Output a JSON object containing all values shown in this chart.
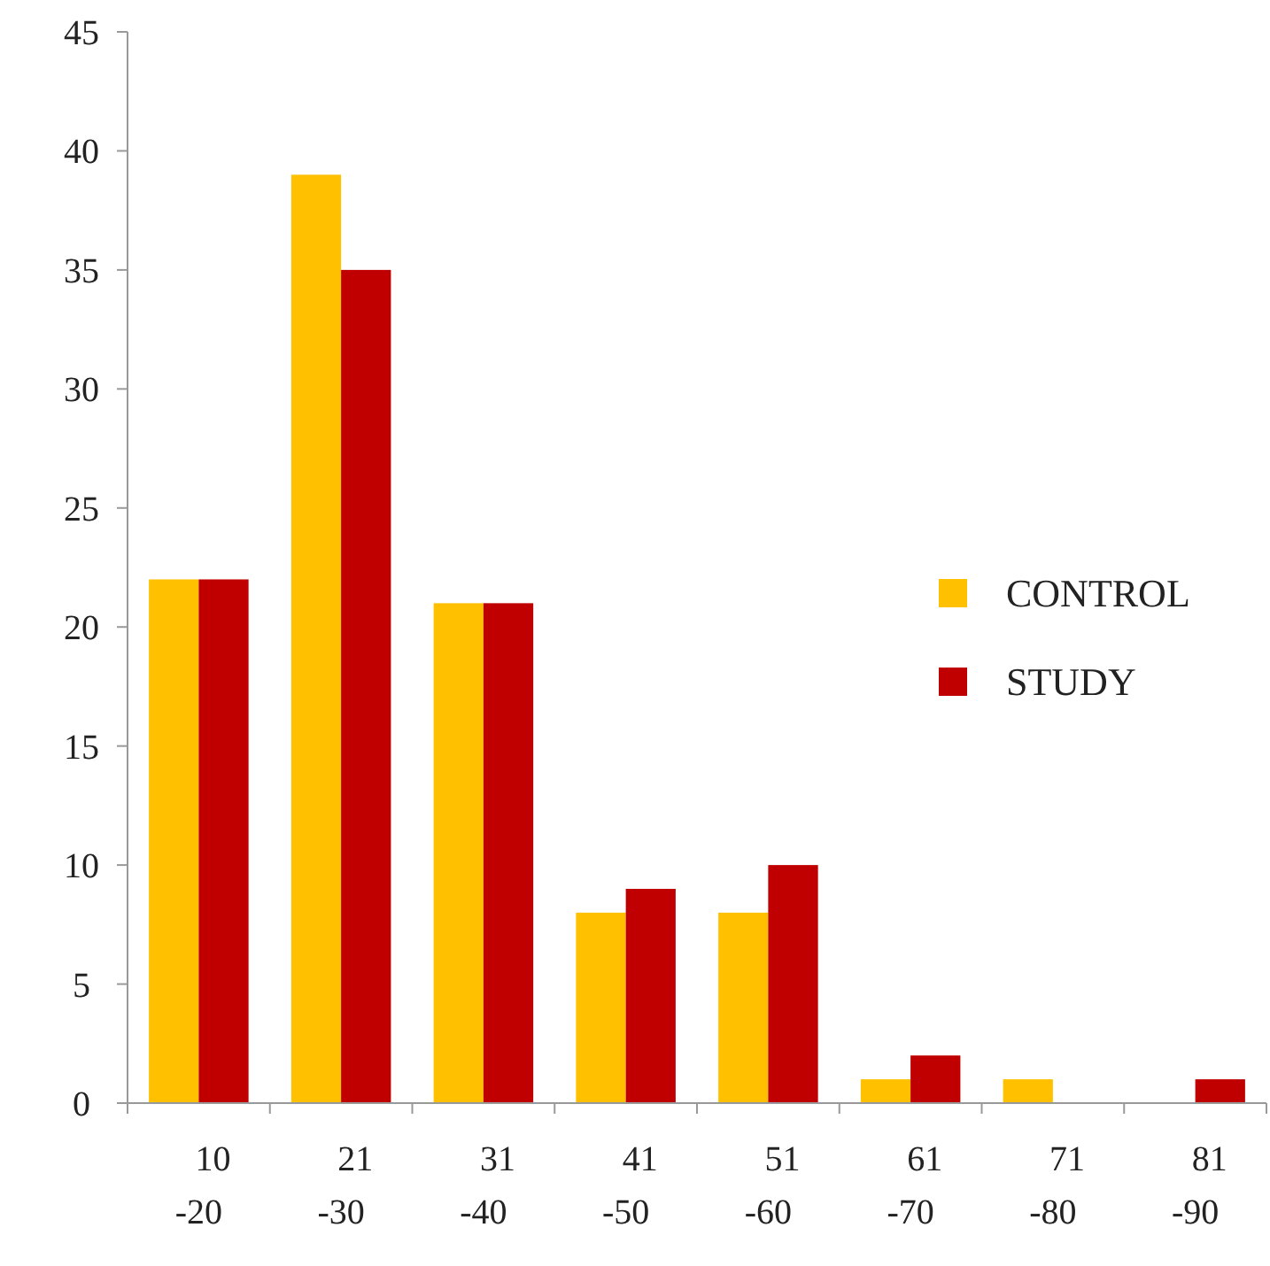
{
  "chart_data": {
    "type": "bar",
    "categories": [
      "10\n-20",
      "21\n-30",
      "31\n-40",
      "41\n-50",
      "51\n-60",
      "61\n-70",
      "71\n-80",
      "81\n-90"
    ],
    "series": [
      {
        "name": "CONTROL",
        "color": "#ffc000",
        "values": [
          22,
          39,
          21,
          8,
          8,
          1,
          1,
          0
        ]
      },
      {
        "name": "STUDY",
        "color": "#c00000",
        "values": [
          22,
          35,
          21,
          9,
          10,
          2,
          0,
          1
        ]
      }
    ],
    "ylim": [
      0,
      45
    ],
    "yticks": [
      0,
      5,
      10,
      15,
      20,
      25,
      30,
      35,
      40,
      45
    ],
    "grid": false,
    "legend": "right"
  }
}
